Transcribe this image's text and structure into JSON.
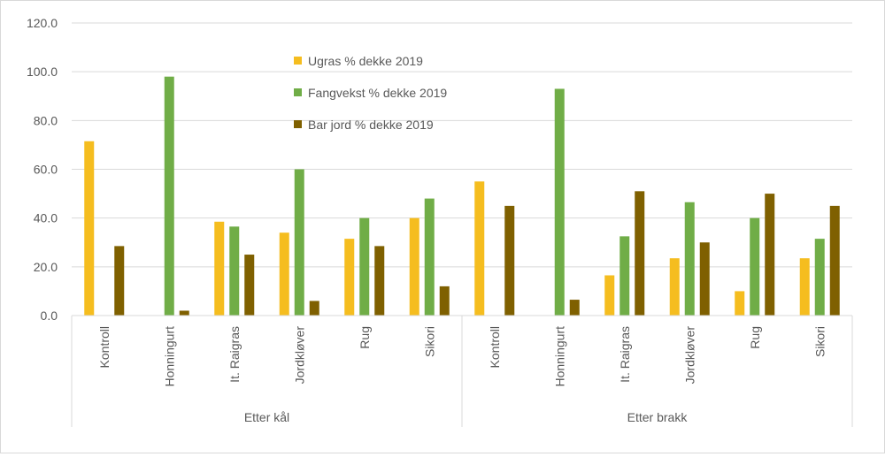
{
  "chart_data": {
    "type": "bar",
    "groups": [
      {
        "label": "Etter kål",
        "categories": [
          "Kontroll",
          "Honningurt",
          "It. Raigras",
          "Jordkløver",
          "Rug",
          "Sikori"
        ]
      },
      {
        "label": "Etter brakk",
        "categories": [
          "Kontroll",
          "Honningurt",
          "It. Raigras",
          "Jordkløver",
          "Rug",
          "Sikori"
        ]
      }
    ],
    "series": [
      {
        "name": "Ugras % dekke 2019",
        "color": "#f5bd1f",
        "values": [
          71.5,
          0,
          38.5,
          34,
          31.5,
          40,
          55,
          0,
          16.5,
          23.5,
          10,
          23.5
        ]
      },
      {
        "name": "Fangvekst % dekke 2019",
        "color": "#70ad47",
        "values": [
          0,
          98,
          36.5,
          60,
          40,
          48,
          0,
          93,
          32.5,
          46.5,
          40,
          31.5
        ]
      },
      {
        "name": "Bar jord % dekke 2019",
        "color": "#7f6000",
        "values": [
          28.5,
          2,
          25,
          6,
          28.5,
          12,
          45,
          6.5,
          51,
          30,
          50,
          45
        ]
      }
    ],
    "yticks": [
      "0.0",
      "20.0",
      "40.0",
      "60.0",
      "80.0",
      "100.0",
      "120.0"
    ],
    "ylim": [
      0,
      120
    ],
    "grid": true,
    "legend": "top-center"
  }
}
